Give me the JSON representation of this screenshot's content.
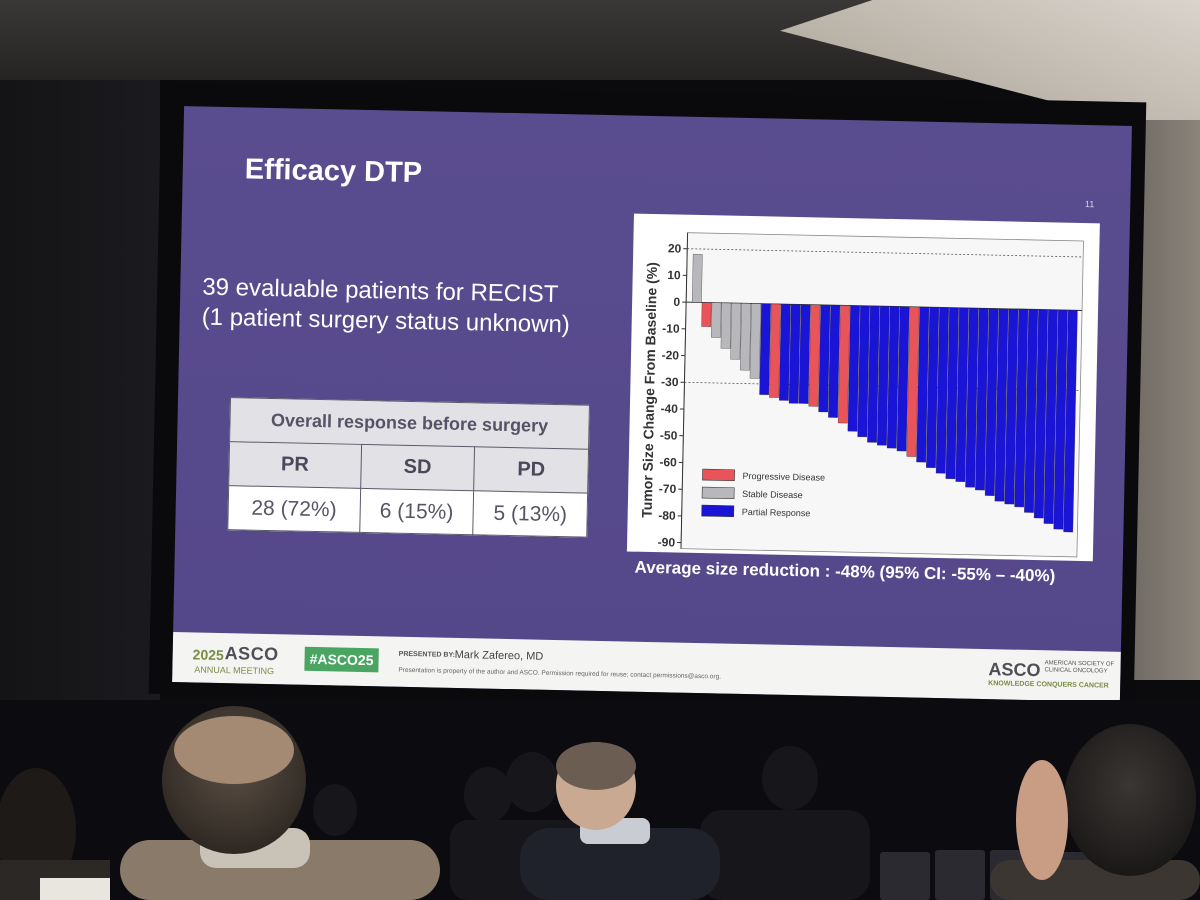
{
  "slide": {
    "title": "Efficacy DTP",
    "number": "11",
    "subtitle_line1": "39 evaluable patients for RECIST",
    "subtitle_line2": "(1 patient surgery status unknown)",
    "table": {
      "header": "Overall response before surgery",
      "categories": [
        "PR",
        "SD",
        "PD"
      ],
      "values": [
        "28 (72%)",
        "6 (15%)",
        "5 (13%)"
      ]
    },
    "caption": "Average size reduction : -48% (95% CI: -55% – -40%)"
  },
  "footer": {
    "year": "2025",
    "asco": "ASCO",
    "meeting": "ANNUAL MEETING",
    "hashtag": "#ASCO25",
    "presented_by_label": "PRESENTED BY:",
    "presenter": "Mark Zafereo, MD",
    "notice": "Presentation is property of the author and ASCO. Permission required for reuse; contact permissions@asco.org.",
    "asco_right": "ASCO",
    "society": "AMERICAN SOCIETY OF CLINICAL ONCOLOGY",
    "tagline": "KNOWLEDGE CONQUERS CANCER"
  },
  "colors": {
    "progressive": "#e8545a",
    "stable": "#b8b8bc",
    "partial": "#1a14d6"
  },
  "chart_data": {
    "type": "bar",
    "title": "",
    "ylabel": "Tumor Size Change From Baseline (%)",
    "xlabel": "",
    "ylim": [
      -90,
      20
    ],
    "yticks": [
      20,
      10,
      0,
      -10,
      -20,
      -30,
      -40,
      -50,
      -60,
      -70,
      -80,
      -90
    ],
    "reference_lines": [
      20,
      -30
    ],
    "legend_placement": "bottom-left",
    "series": [
      {
        "name": "Progressive Disease",
        "color": "#e8545a"
      },
      {
        "name": "Stable Disease",
        "color": "#b8b8bc"
      },
      {
        "name": "Partial Response",
        "color": "#1a14d6"
      }
    ],
    "bars": [
      {
        "value": 18,
        "series": "Stable Disease"
      },
      {
        "value": -9,
        "series": "Progressive Disease"
      },
      {
        "value": -13,
        "series": "Stable Disease"
      },
      {
        "value": -17,
        "series": "Stable Disease"
      },
      {
        "value": -21,
        "series": "Stable Disease"
      },
      {
        "value": -25,
        "series": "Stable Disease"
      },
      {
        "value": -28,
        "series": "Stable Disease"
      },
      {
        "value": -34,
        "series": "Partial Response"
      },
      {
        "value": -35,
        "series": "Progressive Disease"
      },
      {
        "value": -36,
        "series": "Partial Response"
      },
      {
        "value": -37,
        "series": "Partial Response"
      },
      {
        "value": -37,
        "series": "Partial Response"
      },
      {
        "value": -38,
        "series": "Progressive Disease"
      },
      {
        "value": -40,
        "series": "Partial Response"
      },
      {
        "value": -42,
        "series": "Partial Response"
      },
      {
        "value": -44,
        "series": "Progressive Disease"
      },
      {
        "value": -47,
        "series": "Partial Response"
      },
      {
        "value": -49,
        "series": "Partial Response"
      },
      {
        "value": -51,
        "series": "Partial Response"
      },
      {
        "value": -52,
        "series": "Partial Response"
      },
      {
        "value": -53,
        "series": "Partial Response"
      },
      {
        "value": -54,
        "series": "Partial Response"
      },
      {
        "value": -56,
        "series": "Progressive Disease"
      },
      {
        "value": -58,
        "series": "Partial Response"
      },
      {
        "value": -60,
        "series": "Partial Response"
      },
      {
        "value": -62,
        "series": "Partial Response"
      },
      {
        "value": -64,
        "series": "Partial Response"
      },
      {
        "value": -65,
        "series": "Partial Response"
      },
      {
        "value": -67,
        "series": "Partial Response"
      },
      {
        "value": -68,
        "series": "Partial Response"
      },
      {
        "value": -70,
        "series": "Partial Response"
      },
      {
        "value": -72,
        "series": "Partial Response"
      },
      {
        "value": -73,
        "series": "Partial Response"
      },
      {
        "value": -74,
        "series": "Partial Response"
      },
      {
        "value": -76,
        "series": "Partial Response"
      },
      {
        "value": -78,
        "series": "Partial Response"
      },
      {
        "value": -80,
        "series": "Partial Response"
      },
      {
        "value": -82,
        "series": "Partial Response"
      },
      {
        "value": -83,
        "series": "Partial Response"
      }
    ]
  }
}
